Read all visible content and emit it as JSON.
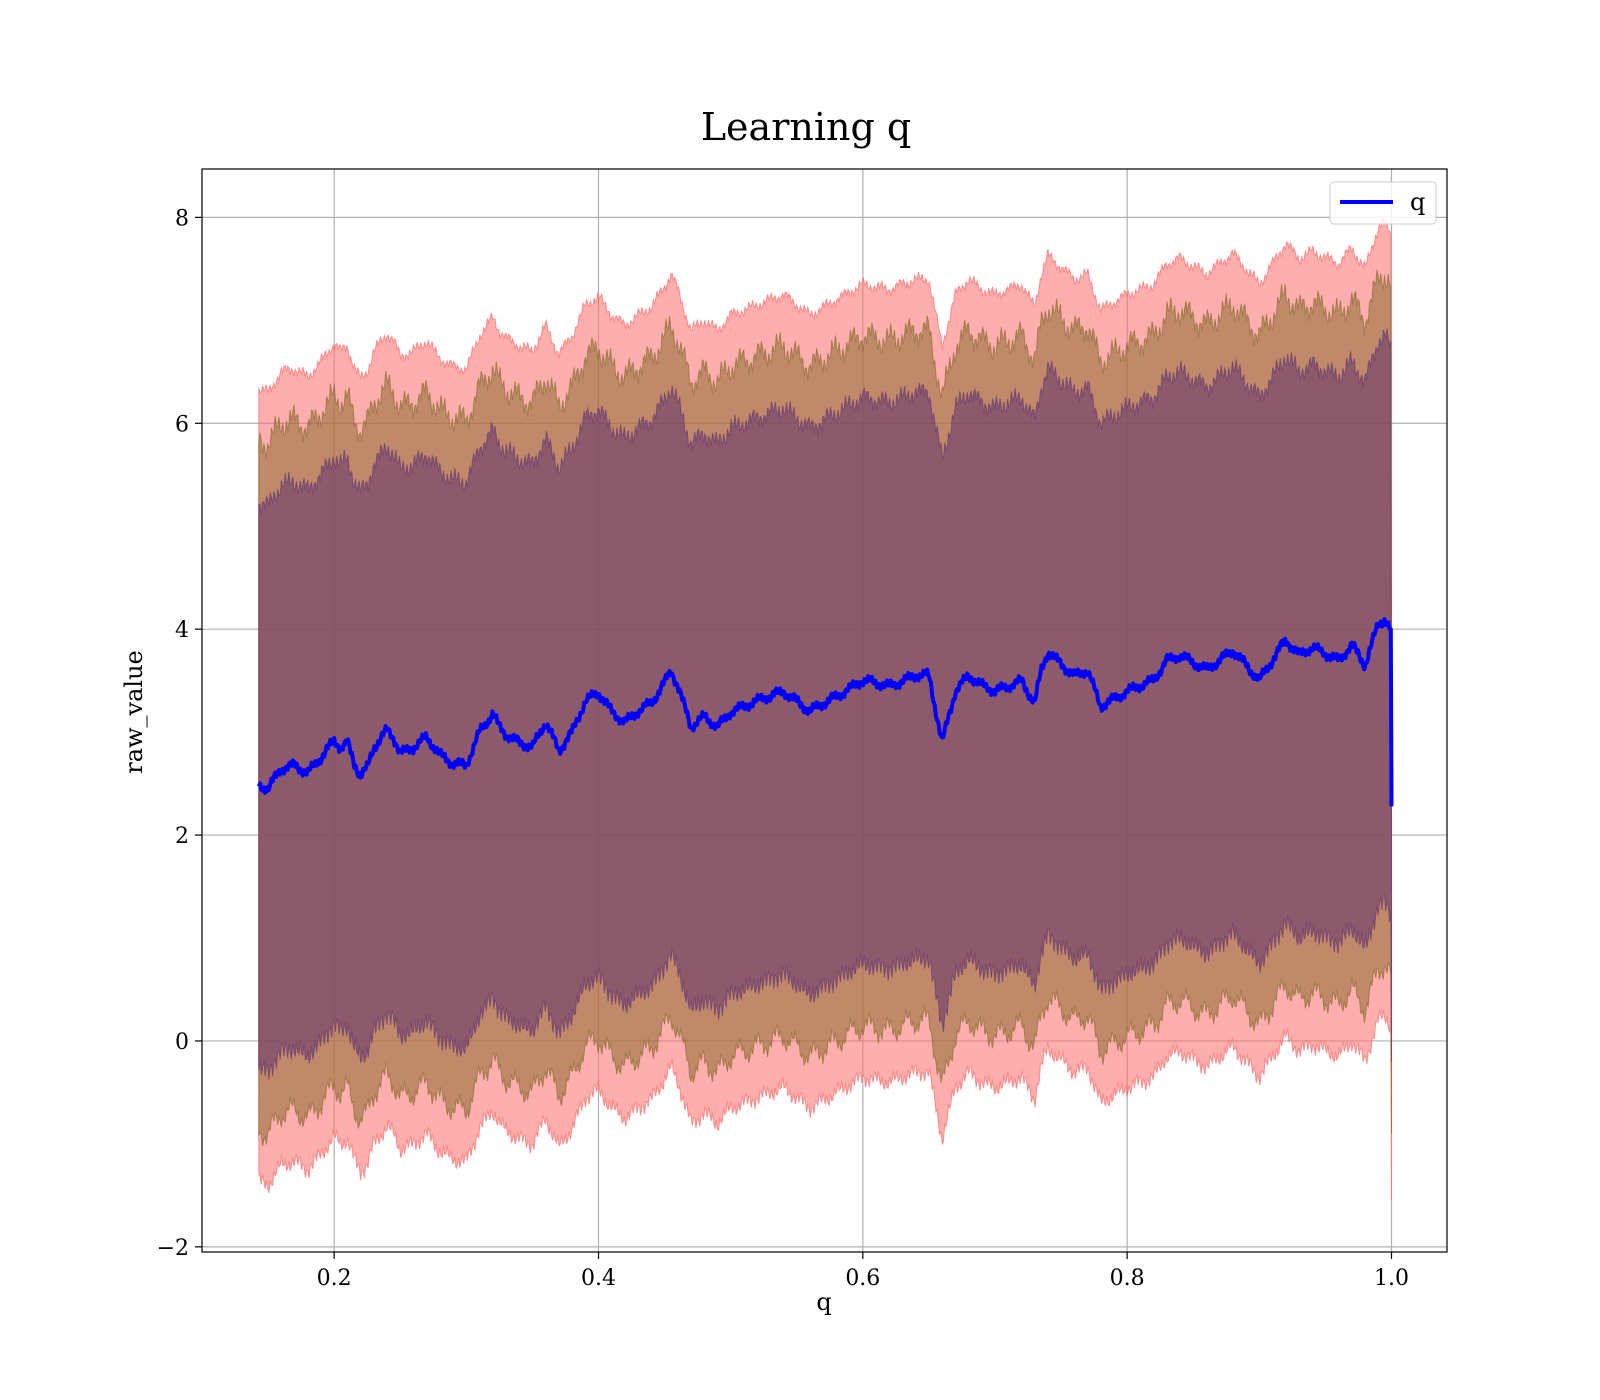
{
  "chart_data": {
    "type": "line",
    "title": "Learning q",
    "xlabel": "q",
    "ylabel": "raw_value",
    "xlim": [
      0.1,
      1.042
    ],
    "ylim": [
      -2.05,
      8.47
    ],
    "xticks": [
      {
        "value": 0.2,
        "label": "0.2"
      },
      {
        "value": 0.4,
        "label": "0.4"
      },
      {
        "value": 0.6,
        "label": "0.6"
      },
      {
        "value": 0.8,
        "label": "0.8"
      },
      {
        "value": 1.0,
        "label": "1.0"
      }
    ],
    "yticks": [
      {
        "value": -2,
        "label": "−2"
      },
      {
        "value": 0,
        "label": "0"
      },
      {
        "value": 2,
        "label": "2"
      },
      {
        "value": 4,
        "label": "4"
      },
      {
        "value": 6,
        "label": "6"
      },
      {
        "value": 8,
        "label": "8"
      }
    ],
    "grid": true,
    "legend": {
      "position": "top-right",
      "entries": [
        "q"
      ]
    },
    "colors": {
      "line": "#0000ff",
      "band_outer": "#ff6b6b",
      "band_middle": "#8c6d33",
      "band_inner": "#6a3a6e"
    },
    "series": [
      {
        "name": "q",
        "x": [
          0.143,
          0.15,
          0.16,
          0.17,
          0.18,
          0.19,
          0.2,
          0.205,
          0.21,
          0.215,
          0.22,
          0.225,
          0.23,
          0.24,
          0.245,
          0.25,
          0.26,
          0.27,
          0.28,
          0.29,
          0.3,
          0.31,
          0.32,
          0.325,
          0.33,
          0.34,
          0.35,
          0.36,
          0.37,
          0.38,
          0.39,
          0.4,
          0.41,
          0.42,
          0.43,
          0.44,
          0.45,
          0.455,
          0.46,
          0.47,
          0.48,
          0.49,
          0.5,
          0.52,
          0.54,
          0.56,
          0.58,
          0.6,
          0.62,
          0.64,
          0.65,
          0.66,
          0.67,
          0.68,
          0.69,
          0.7,
          0.72,
          0.73,
          0.735,
          0.74,
          0.76,
          0.77,
          0.78,
          0.8,
          0.82,
          0.83,
          0.84,
          0.86,
          0.88,
          0.9,
          0.92,
          0.93,
          0.94,
          0.96,
          0.97,
          0.98,
          0.99,
          0.995,
          0.999,
          1.0
        ],
        "y": [
          2.48,
          2.45,
          2.65,
          2.68,
          2.6,
          2.75,
          2.92,
          2.85,
          2.9,
          2.7,
          2.58,
          2.65,
          2.85,
          3.02,
          2.95,
          2.8,
          2.85,
          2.95,
          2.78,
          2.7,
          2.68,
          3.0,
          3.18,
          3.05,
          2.98,
          2.9,
          2.85,
          3.1,
          2.82,
          3.0,
          3.3,
          3.38,
          3.2,
          3.1,
          3.2,
          3.28,
          3.48,
          3.6,
          3.45,
          3.05,
          3.15,
          3.05,
          3.2,
          3.3,
          3.4,
          3.2,
          3.35,
          3.5,
          3.45,
          3.55,
          3.55,
          2.9,
          3.4,
          3.55,
          3.45,
          3.4,
          3.5,
          3.28,
          3.6,
          3.78,
          3.55,
          3.6,
          3.25,
          3.4,
          3.5,
          3.7,
          3.75,
          3.6,
          3.8,
          3.5,
          3.9,
          3.75,
          3.82,
          3.7,
          3.85,
          3.65,
          4.05,
          4.1,
          4.0,
          2.28
        ]
      }
    ],
    "bands": {
      "outer_offset": 3.85,
      "middle_offset": 3.35,
      "inner_offset": 2.75
    }
  }
}
